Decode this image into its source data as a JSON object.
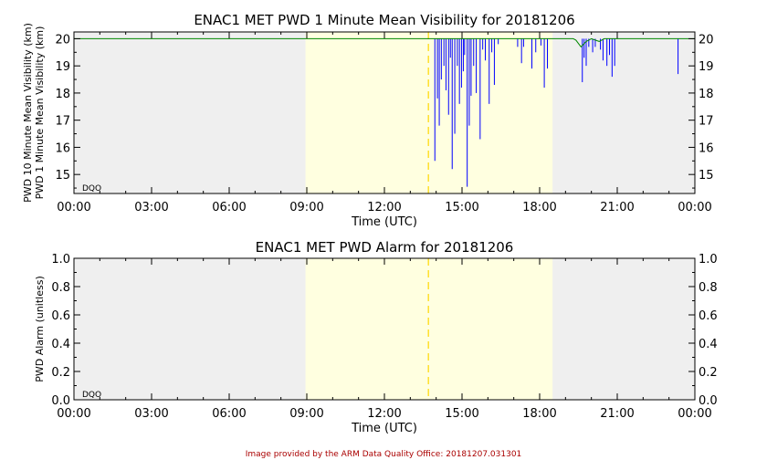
{
  "chart_data": [
    {
      "type": "line",
      "title": "ENAC1 MET PWD 1 Minute Mean Visibility for 20181206",
      "xlabel": "Time (UTC)",
      "ylabel_series_10min": "PWD 10 Minute Mean Visibility (km)",
      "ylabel_series_1min": "PWD 1 Minute Mean Visibility (km)",
      "x_ticks": [
        "00:00",
        "03:00",
        "06:00",
        "09:00",
        "12:00",
        "15:00",
        "18:00",
        "21:00",
        "00:00"
      ],
      "y_ticks": [
        "15",
        "16",
        "17",
        "18",
        "19",
        "20"
      ],
      "ylim": [
        14.3,
        20.25
      ],
      "xlim_hours": [
        0,
        24
      ],
      "dqo_label": "DQO",
      "night_color": "#efefef",
      "day_color": "#ffffe0",
      "daylight_hours": [
        8.95,
        18.5
      ],
      "solar_noon_hour": 13.7,
      "series": [
        {
          "name": "PWD 10 Minute Mean Visibility",
          "color": "#008800",
          "points": [
            [
              0,
              20
            ],
            [
              13.9,
              20
            ],
            [
              14,
              20
            ],
            [
              19.3,
              20
            ],
            [
              19.4,
              19.95
            ],
            [
              19.6,
              19.7
            ],
            [
              19.8,
              19.9
            ],
            [
              20,
              20
            ],
            [
              20.3,
              19.9
            ],
            [
              20.5,
              20
            ],
            [
              24,
              20
            ]
          ]
        },
        {
          "name": "PWD 1 Minute Mean Visibility",
          "color": "#0000ff",
          "baseline": 20,
          "dips": [
            [
              13.95,
              15.5
            ],
            [
              14.05,
              17.8
            ],
            [
              14.12,
              16.8
            ],
            [
              14.2,
              18.5
            ],
            [
              14.3,
              19.0
            ],
            [
              14.38,
              18.1
            ],
            [
              14.48,
              17.2
            ],
            [
              14.55,
              19.3
            ],
            [
              14.62,
              15.2
            ],
            [
              14.72,
              16.5
            ],
            [
              14.82,
              19.0
            ],
            [
              14.9,
              17.6
            ],
            [
              14.98,
              18.2
            ],
            [
              15.05,
              18.8
            ],
            [
              15.1,
              19.4
            ],
            [
              15.2,
              14.55
            ],
            [
              15.28,
              16.8
            ],
            [
              15.35,
              17.9
            ],
            [
              15.45,
              19.0
            ],
            [
              15.55,
              18.0
            ],
            [
              15.7,
              16.3
            ],
            [
              15.8,
              19.6
            ],
            [
              15.9,
              19.2
            ],
            [
              16.05,
              17.6
            ],
            [
              16.15,
              19.5
            ],
            [
              16.25,
              18.3
            ],
            [
              16.4,
              19.8
            ],
            [
              17.15,
              19.7
            ],
            [
              17.3,
              19.1
            ],
            [
              17.38,
              19.7
            ],
            [
              17.7,
              18.9
            ],
            [
              17.85,
              19.5
            ],
            [
              18.05,
              19.75
            ],
            [
              18.18,
              18.2
            ],
            [
              18.3,
              18.9
            ],
            [
              19.65,
              18.4
            ],
            [
              19.72,
              19.3
            ],
            [
              19.8,
              19.0
            ],
            [
              19.9,
              19.7
            ],
            [
              20.05,
              19.5
            ],
            [
              20.15,
              19.7
            ],
            [
              20.35,
              19.6
            ],
            [
              20.45,
              19.2
            ],
            [
              20.6,
              19.0
            ],
            [
              20.7,
              19.4
            ],
            [
              20.8,
              18.6
            ],
            [
              20.9,
              19.0
            ],
            [
              23.35,
              18.7
            ]
          ]
        }
      ]
    },
    {
      "type": "line",
      "title": "ENAC1 MET PWD Alarm for 20181206",
      "xlabel": "Time (UTC)",
      "ylabel": "PWD Alarm (unitless)",
      "x_ticks": [
        "00:00",
        "03:00",
        "06:00",
        "09:00",
        "12:00",
        "15:00",
        "18:00",
        "21:00",
        "00:00"
      ],
      "y_ticks": [
        "0.0",
        "0.2",
        "0.4",
        "0.6",
        "0.8",
        "1.0"
      ],
      "ylim": [
        0,
        1
      ],
      "xlim_hours": [
        0,
        24
      ],
      "dqo_label": "DQO",
      "series": []
    }
  ],
  "footer": "Image provided by the ARM Data Quality Office: 20181207.031301"
}
